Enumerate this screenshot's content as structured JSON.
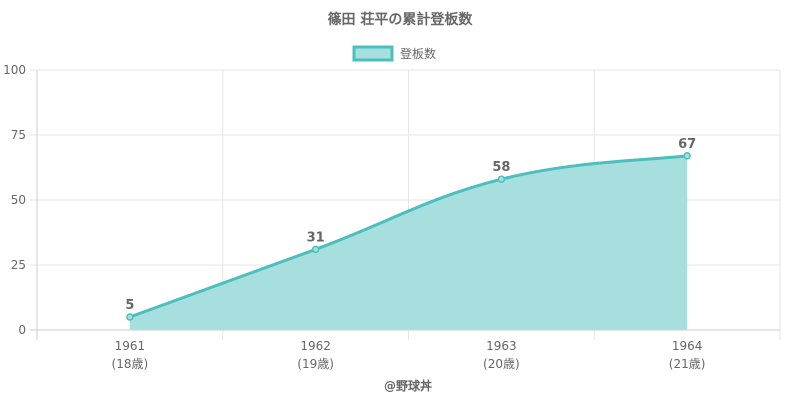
{
  "chart_data": {
    "type": "area",
    "title": "篠田 荘平の累計登板数",
    "legend": {
      "label": "登板数",
      "position": "top"
    },
    "categories": [
      "1961",
      "1962",
      "1963",
      "1964"
    ],
    "sublabels": [
      "(18歳)",
      "(19歳)",
      "(20歳)",
      "(21歳)"
    ],
    "series": [
      {
        "name": "登板数",
        "values": [
          5,
          31,
          58,
          67
        ]
      }
    ],
    "ylim": [
      0,
      100
    ],
    "yticks": [
      0,
      25,
      50,
      75,
      100
    ],
    "xlabel": "@野球丼",
    "ylabel": "",
    "grid": true,
    "colors": {
      "line": "#4bbfbd",
      "fill": "#a6dfde",
      "grid": "#e5e5e5",
      "axis": "#cccccc",
      "text": "#666666"
    }
  }
}
